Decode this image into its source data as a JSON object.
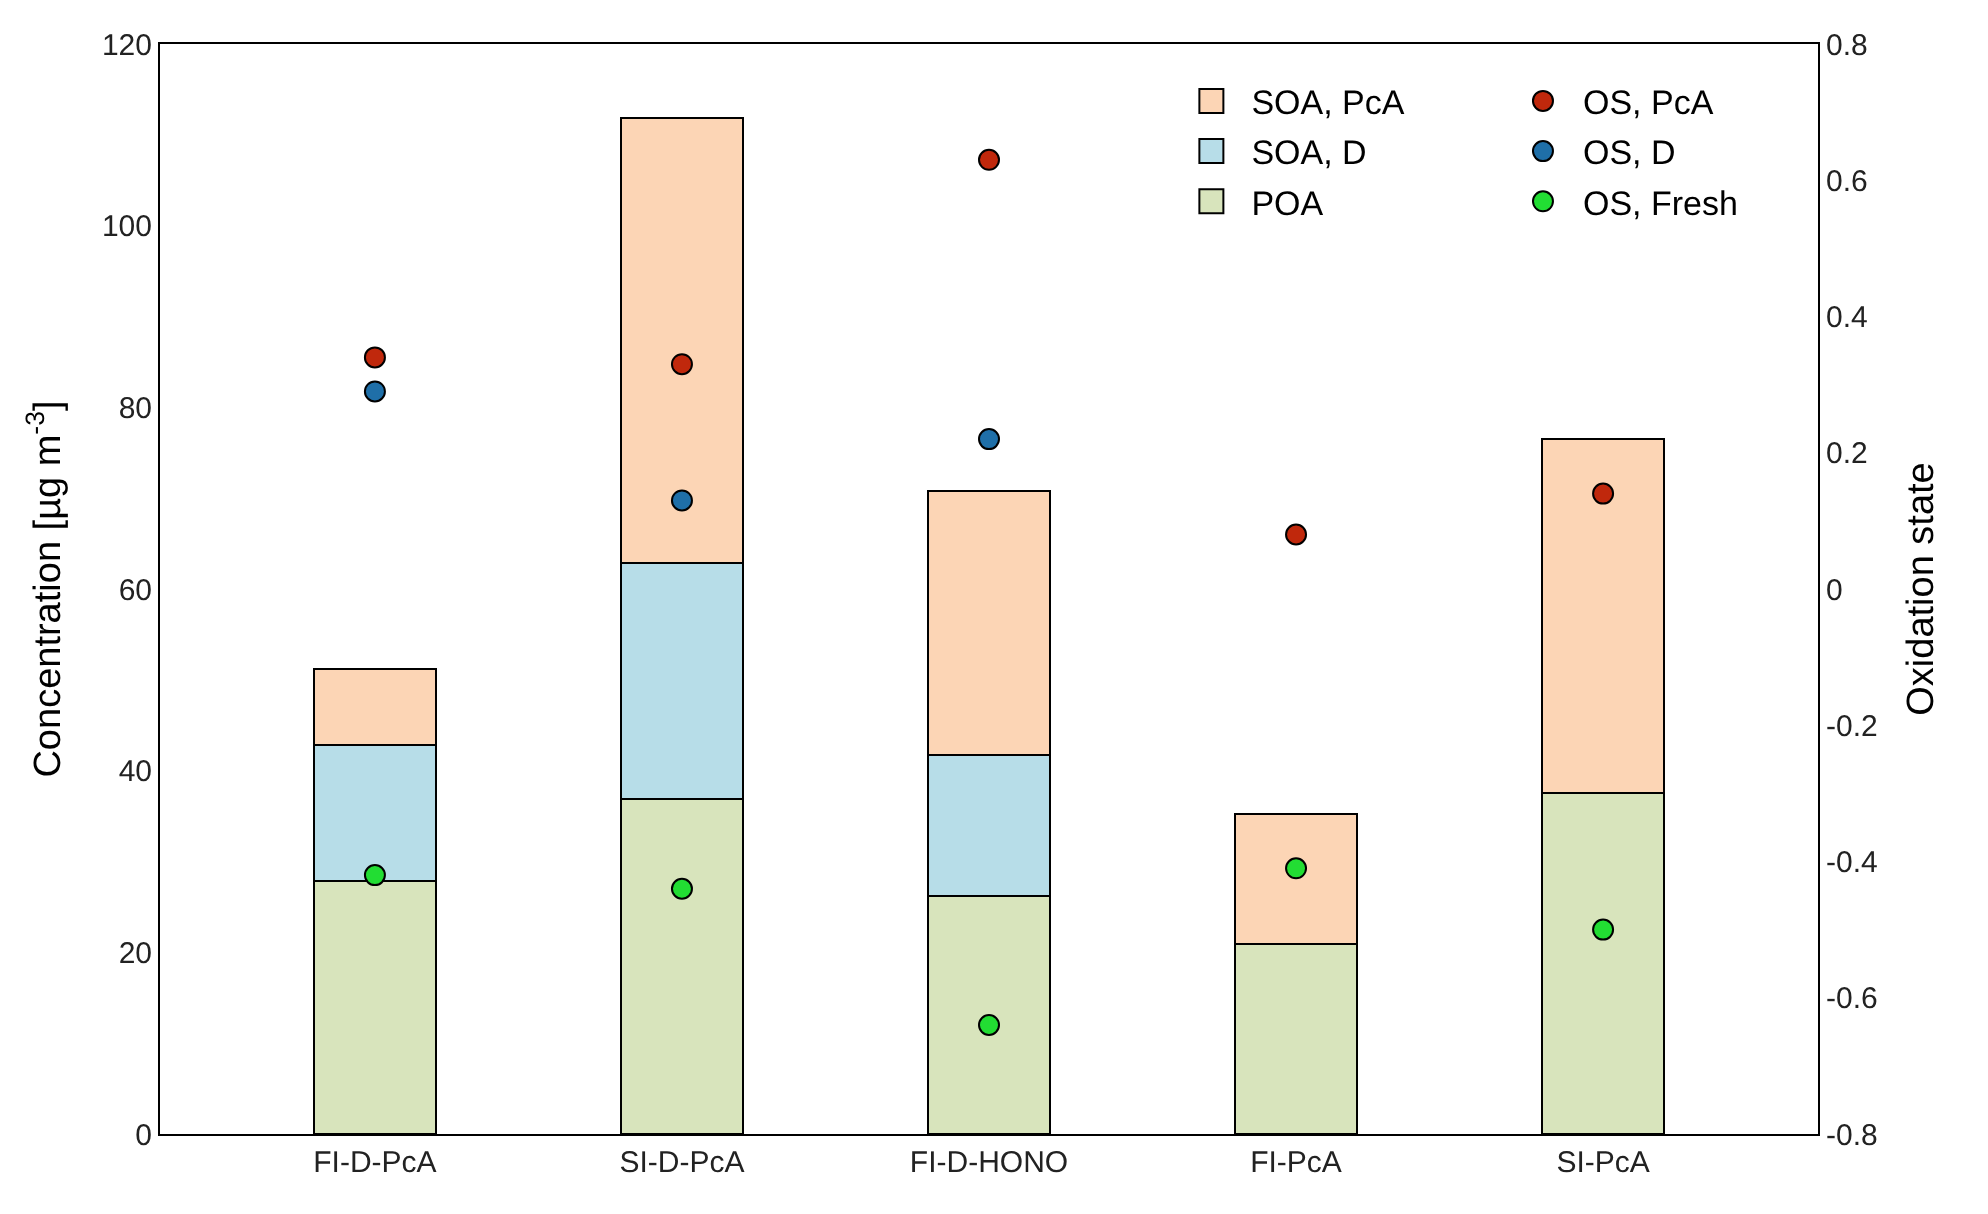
{
  "chart_data": {
    "type": "bar",
    "stacked": true,
    "categories": [
      "FI-D-PcA",
      "SI-D-PcA",
      "FI-D-HONO",
      "FI-PcA",
      "SI-PcA"
    ],
    "ylabel": "Concentration [µg m$^{-3}$]",
    "y2label": "Oxidation state",
    "ylim": [
      0,
      120
    ],
    "yticks": [
      0,
      20,
      40,
      60,
      80,
      100,
      120
    ],
    "y2lim": [
      -0.8,
      0.8
    ],
    "y2ticks": [
      -0.8,
      -0.6,
      -0.4,
      -0.2,
      0,
      0.2,
      0.4,
      0.6,
      0.8
    ],
    "grid": false,
    "legend": "top right",
    "series": [
      {
        "name": "POA",
        "color": "#d8e4bc",
        "values": [
          27.9,
          36.9,
          26.2,
          20.9,
          37.5
        ]
      },
      {
        "name": "SOA, D",
        "color": "#b7dde8",
        "values": [
          14.9,
          26.0,
          15.5,
          null,
          null
        ]
      },
      {
        "name": "SOA, PcA",
        "color": "#fcd5b5",
        "values": [
          8.4,
          48.9,
          29.1,
          14.3,
          39.0
        ]
      },
      {
        "name": "OS, PcA",
        "type": "scatter",
        "axis": "y2",
        "marker": "circle",
        "color": "#c0280c",
        "values": [
          0.34,
          0.33,
          0.63,
          0.08,
          0.14
        ]
      },
      {
        "name": "OS, D",
        "type": "scatter",
        "axis": "y2",
        "marker": "circle",
        "color": "#1f6fa8",
        "values": [
          0.29,
          0.13,
          0.22,
          null,
          null
        ]
      },
      {
        "name": "OS, Fresh",
        "type": "scatter",
        "axis": "y2",
        "marker": "circle",
        "color": "#22dd33",
        "values": [
          -0.42,
          -0.44,
          -0.64,
          -0.41,
          -0.5
        ]
      }
    ]
  }
}
